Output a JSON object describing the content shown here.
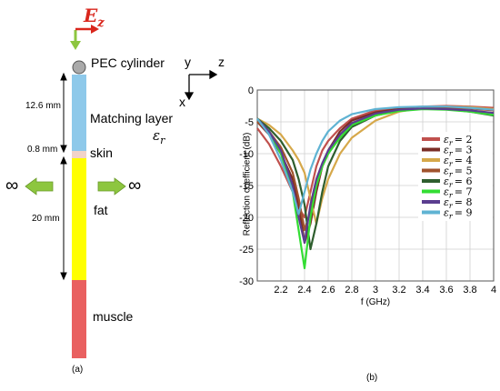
{
  "diagram": {
    "field_label": "E",
    "field_sub": "z",
    "pec_label": "PEC cylinder",
    "axes": {
      "y": "y",
      "z": "z",
      "x": "x"
    },
    "matching_label": "Matching layer",
    "eps_label": "ε",
    "eps_sub": "r",
    "skin_label": "skin",
    "fat_label": "fat",
    "muscle_label": "muscle",
    "dim_matching": "12.6 mm",
    "dim_skin": "0.8 mm",
    "dim_fat": "20 mm",
    "infinity_left": "∞",
    "infinity_right": "∞",
    "panel_label": "(a)",
    "colors": {
      "matching": "#8ec9ea",
      "skin": "#f2d3c8",
      "fat": "#ffff00",
      "muscle": "#e96060",
      "pec": "#aaaaaa",
      "arrow_green": "#8dc63f",
      "field_red": "#d9261c"
    }
  },
  "chart_panel_label": "(b)",
  "chart_data": {
    "type": "line",
    "title": "",
    "xlabel": "f (GHz)",
    "ylabel": "Reflection coefficient (dB)",
    "xlim": [
      2.0,
      4.0
    ],
    "ylim": [
      -30,
      0
    ],
    "xticks": [
      "2.2",
      "2.4",
      "2.6",
      "2.8",
      "3",
      "3.2",
      "3.4",
      "3.6",
      "3.8",
      "4"
    ],
    "xtick_values": [
      2.2,
      2.4,
      2.6,
      2.8,
      3.0,
      3.2,
      3.4,
      3.6,
      3.8,
      4.0
    ],
    "yticks": [
      "0",
      "-5",
      "-10",
      "-15",
      "-20",
      "-25",
      "-30"
    ],
    "ytick_values": [
      0,
      -5,
      -10,
      -15,
      -20,
      -25,
      -30
    ],
    "grid": true,
    "legend_position": "right",
    "x": [
      2.0,
      2.1,
      2.2,
      2.3,
      2.35,
      2.4,
      2.45,
      2.5,
      2.55,
      2.6,
      2.7,
      2.8,
      3.0,
      3.2,
      3.4,
      3.6,
      3.8,
      4.0
    ],
    "series": [
      {
        "name": "ε_r = 2",
        "label_base": "ε",
        "label_sub": "r",
        "label_value": "= 2",
        "color": "#c0504d",
        "values": [
          -6,
          -8.5,
          -12,
          -16,
          -18.5,
          -20,
          -16,
          -12,
          -9.5,
          -8,
          -6,
          -4.5,
          -3.2,
          -2.8,
          -2.6,
          -2.5,
          -2.6,
          -2.8
        ]
      },
      {
        "name": "ε_r = 3",
        "label_base": "ε",
        "label_sub": "r",
        "label_value": "= 3",
        "color": "#7b2d26",
        "values": [
          -5,
          -7,
          -10,
          -14,
          -18,
          -24,
          -21,
          -16,
          -12,
          -9.5,
          -6.5,
          -4.8,
          -3.5,
          -3.0,
          -2.8,
          -2.7,
          -2.8,
          -3.0
        ]
      },
      {
        "name": "ε_r = 4",
        "label_base": "ε",
        "label_sub": "r",
        "label_value": "= 4",
        "color": "#d6a84a",
        "values": [
          -4.5,
          -5.5,
          -7,
          -9.5,
          -11,
          -13,
          -17,
          -21,
          -17,
          -14,
          -10,
          -7.5,
          -4.8,
          -3.4,
          -2.8,
          -2.6,
          -2.7,
          -3.0
        ]
      },
      {
        "name": "ε_r = 5",
        "label_base": "ε",
        "label_sub": "r",
        "label_value": "= 5",
        "color": "#a0522d",
        "values": [
          -5,
          -6.5,
          -9,
          -13,
          -17,
          -22,
          -19,
          -15,
          -12,
          -10,
          -7,
          -5.2,
          -3.8,
          -3.2,
          -2.9,
          -2.8,
          -2.9,
          -3.2
        ]
      },
      {
        "name": "ε_r = 6",
        "label_base": "ε",
        "label_sub": "r",
        "label_value": "= 6",
        "color": "#2e5e2e",
        "values": [
          -4.5,
          -6,
          -8,
          -11,
          -14,
          -18,
          -25,
          -21,
          -16,
          -12,
          -8,
          -5.8,
          -4.0,
          -3.2,
          -2.9,
          -3.0,
          -3.4,
          -4.0
        ]
      },
      {
        "name": "ε_r = 7",
        "label_base": "ε",
        "label_sub": "r",
        "label_value": "= 7",
        "color": "#33dd33",
        "values": [
          -4.5,
          -6.5,
          -10,
          -16,
          -22,
          -28,
          -20,
          -15,
          -12,
          -10,
          -7.5,
          -5.5,
          -4.0,
          -3.3,
          -3.0,
          -3.1,
          -3.4,
          -3.9
        ]
      },
      {
        "name": "ε_r = 8",
        "label_base": "ε",
        "label_sub": "r",
        "label_value": "= 8",
        "color": "#5b3d8f",
        "values": [
          -4.5,
          -6.5,
          -9.5,
          -15,
          -20,
          -24,
          -18,
          -14,
          -11.5,
          -9.5,
          -7,
          -5.2,
          -3.7,
          -3.1,
          -2.9,
          -3.0,
          -3.2,
          -3.6
        ]
      },
      {
        "name": "ε_r = 9",
        "label_base": "ε",
        "label_sub": "r",
        "label_value": "= 9",
        "color": "#5fb3d3",
        "values": [
          -4.5,
          -7,
          -11,
          -16,
          -19.5,
          -16,
          -12.5,
          -10,
          -8,
          -6.5,
          -4.8,
          -3.8,
          -3.0,
          -2.7,
          -2.6,
          -2.6,
          -2.8,
          -3.1
        ]
      }
    ]
  }
}
